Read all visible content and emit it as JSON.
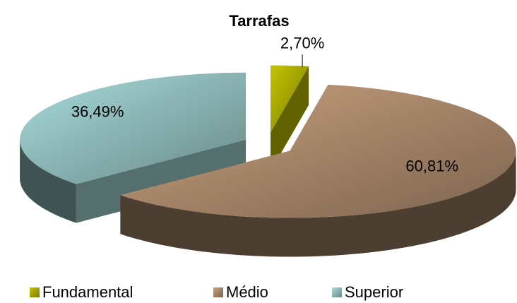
{
  "chart_data": {
    "type": "pie3d",
    "title": "Tarrafas",
    "categories": [
      "Fundamental",
      "Médio",
      "Superior"
    ],
    "values": [
      2.7,
      60.81,
      36.49
    ],
    "value_labels": [
      "2,70%",
      "60,81%",
      "36,49%"
    ],
    "colors": [
      "#c4c400",
      "#c9a27f",
      "#a9dcdc"
    ],
    "legend": "bottom"
  }
}
